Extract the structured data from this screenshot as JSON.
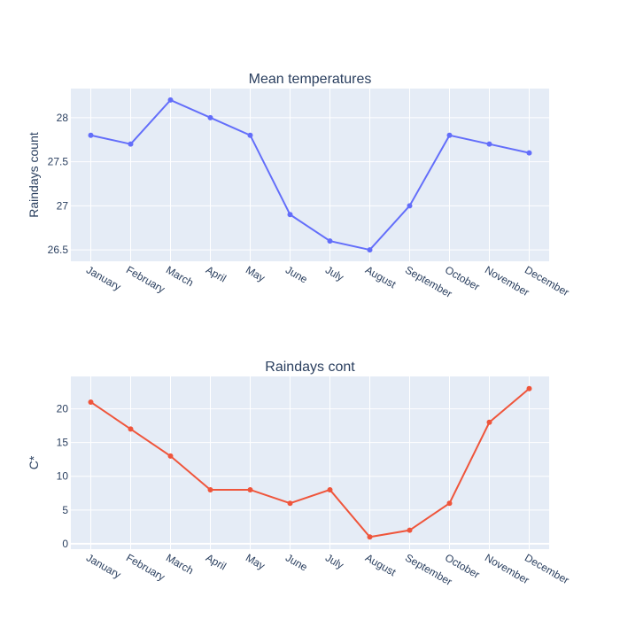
{
  "chart_data": [
    {
      "type": "line",
      "title": "Mean temperatures",
      "xlabel": "",
      "ylabel": "Raindays count",
      "categories": [
        "January",
        "February",
        "March",
        "April",
        "May",
        "June",
        "July",
        "August",
        "September",
        "October",
        "November",
        "December"
      ],
      "series": [
        {
          "values": [
            27.8,
            27.7,
            28.2,
            28.0,
            27.8,
            26.9,
            26.6,
            26.5,
            27.0,
            27.8,
            27.7,
            27.6
          ]
        }
      ],
      "ylim": [
        26.37,
        28.33
      ],
      "yticks": [
        26.5,
        27,
        27.5,
        28
      ],
      "ytick_labels": [
        "26.5",
        "27",
        "27.5",
        "28"
      ],
      "grid": true,
      "color": "#636efa"
    },
    {
      "type": "line",
      "title": "Raindays cont",
      "xlabel": "",
      "ylabel": "C*",
      "categories": [
        "January",
        "February",
        "March",
        "April",
        "May",
        "June",
        "July",
        "August",
        "September",
        "October",
        "November",
        "December"
      ],
      "series": [
        {
          "values": [
            21,
            17,
            13,
            8,
            8,
            6,
            8,
            1,
            2,
            6,
            18,
            23
          ]
        }
      ],
      "ylim": [
        -0.8,
        24.8
      ],
      "yticks": [
        0,
        5,
        10,
        15,
        20
      ],
      "ytick_labels": [
        "0",
        "5",
        "10",
        "15",
        "20"
      ],
      "grid": true,
      "color": "#ef553b"
    }
  ]
}
